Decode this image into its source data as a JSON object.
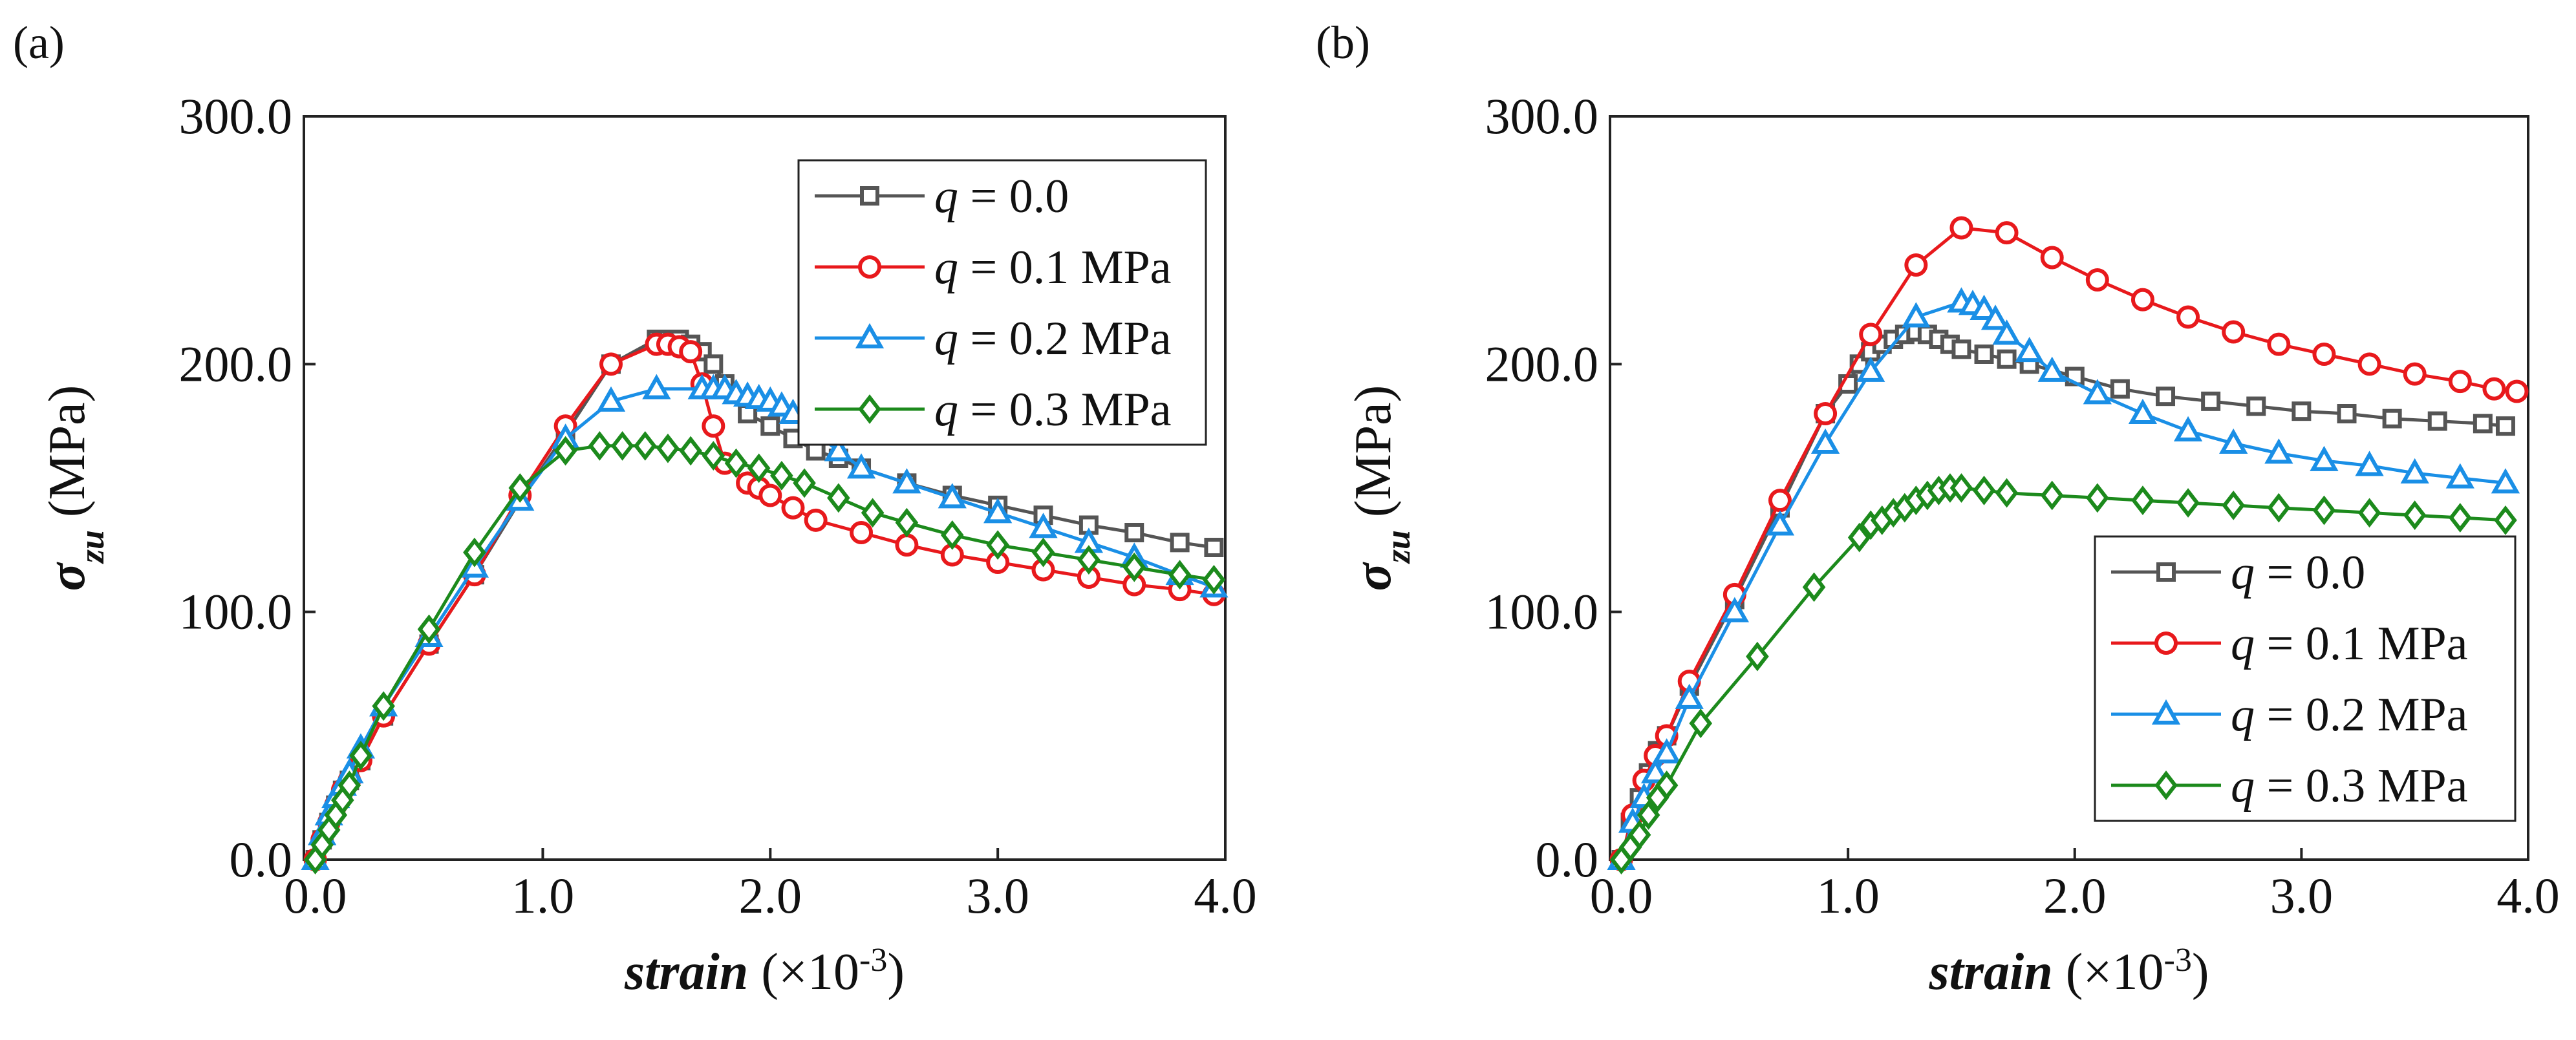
{
  "chart_data": [
    {
      "type": "line",
      "panel_label": "(a)",
      "title": "",
      "xlabel": {
        "var": "strain",
        "unit_prefix": " (×10",
        "unit_sup": "-3",
        "unit_suffix": ")"
      },
      "ylabel": {
        "var": "σ",
        "sub": "zu",
        "unit": " (MPa)"
      },
      "xlim": [
        -0.05,
        4.0
      ],
      "ylim": [
        0,
        300
      ],
      "xticks": [
        "0.0",
        "1.0",
        "2.0",
        "3.0",
        "4.0"
      ],
      "xtick_values": [
        0,
        1,
        2,
        3,
        4
      ],
      "yticks": [
        "0.0",
        "100.0",
        "200.0",
        "300.0"
      ],
      "ytick_values": [
        0,
        100,
        200,
        300
      ],
      "legend_position": "top-right",
      "series": [
        {
          "name_var": "q",
          "name_rest": " = 0.0",
          "color": "#555555",
          "marker": "square",
          "x": [
            0.0,
            0.03,
            0.06,
            0.09,
            0.12,
            0.15,
            0.2,
            0.3,
            0.5,
            0.7,
            0.9,
            1.1,
            1.3,
            1.5,
            1.55,
            1.6,
            1.65,
            1.7,
            1.75,
            1.8,
            1.9,
            2.0,
            2.1,
            2.2,
            2.3,
            2.4,
            2.6,
            2.8,
            3.0,
            3.2,
            3.4,
            3.6,
            3.8,
            3.95
          ],
          "y": [
            0,
            8,
            15,
            22,
            28,
            32,
            40,
            58,
            87,
            115,
            145,
            172,
            200,
            210,
            210,
            210,
            208,
            205,
            200,
            192,
            180,
            175,
            170,
            165,
            162,
            158,
            152,
            147,
            143,
            139,
            135,
            132,
            128,
            126
          ]
        },
        {
          "name_var": "q",
          "name_rest": " = 0.1 MPa",
          "color": "#e8191c",
          "marker": "circle",
          "x": [
            0.0,
            0.03,
            0.06,
            0.09,
            0.12,
            0.15,
            0.2,
            0.3,
            0.5,
            0.7,
            0.9,
            1.1,
            1.3,
            1.5,
            1.55,
            1.6,
            1.65,
            1.7,
            1.75,
            1.8,
            1.9,
            1.95,
            2.0,
            2.1,
            2.2,
            2.4,
            2.6,
            2.8,
            3.0,
            3.2,
            3.4,
            3.6,
            3.8,
            3.95
          ],
          "y": [
            0,
            8,
            15,
            22,
            28,
            32,
            40,
            58,
            87,
            115,
            147,
            175,
            200,
            208,
            208,
            207,
            205,
            192,
            175,
            160,
            152,
            150,
            147,
            142,
            137,
            132,
            127,
            123,
            120,
            117,
            114,
            111,
            109,
            107
          ]
        },
        {
          "name_var": "q",
          "name_rest": " = 0.2 MPa",
          "color": "#1a8fe6",
          "marker": "triangle",
          "x": [
            0.0,
            0.03,
            0.06,
            0.09,
            0.12,
            0.15,
            0.2,
            0.3,
            0.5,
            0.7,
            0.9,
            1.1,
            1.3,
            1.5,
            1.7,
            1.75,
            1.8,
            1.85,
            1.9,
            1.95,
            2.0,
            2.05,
            2.1,
            2.2,
            2.3,
            2.4,
            2.6,
            2.8,
            3.0,
            3.2,
            3.4,
            3.6,
            3.8,
            3.95
          ],
          "y": [
            0,
            10,
            18,
            25,
            30,
            35,
            45,
            62,
            90,
            118,
            145,
            170,
            185,
            190,
            190,
            190,
            190,
            188,
            187,
            186,
            185,
            183,
            180,
            172,
            165,
            158,
            152,
            146,
            140,
            134,
            128,
            122,
            115,
            110
          ]
        },
        {
          "name_var": "q",
          "name_rest": " = 0.3 MPa",
          "color": "#1c8a1c",
          "marker": "diamond",
          "x": [
            0.0,
            0.03,
            0.06,
            0.09,
            0.12,
            0.15,
            0.2,
            0.3,
            0.5,
            0.7,
            0.9,
            1.1,
            1.25,
            1.35,
            1.45,
            1.55,
            1.65,
            1.75,
            1.85,
            1.95,
            2.05,
            2.15,
            2.3,
            2.45,
            2.6,
            2.8,
            3.0,
            3.2,
            3.4,
            3.6,
            3.8,
            3.95
          ],
          "y": [
            0,
            6,
            12,
            18,
            24,
            30,
            42,
            62,
            93,
            124,
            150,
            165,
            167,
            167,
            167,
            166,
            165,
            163,
            160,
            158,
            155,
            152,
            146,
            140,
            136,
            131,
            127,
            124,
            121,
            118,
            115,
            113
          ]
        }
      ]
    },
    {
      "type": "line",
      "panel_label": "(b)",
      "title": "",
      "xlabel": {
        "var": "strain",
        "unit_prefix": " (×10",
        "unit_sup": "-3",
        "unit_suffix": ")"
      },
      "ylabel": {
        "var": "σ",
        "sub": "zu",
        "unit": " (MPa)"
      },
      "xlim": [
        -0.05,
        4.0
      ],
      "ylim": [
        0,
        300
      ],
      "xticks": [
        "0.0",
        "1.0",
        "2.0",
        "3.0",
        "4.0"
      ],
      "xtick_values": [
        0,
        1,
        2,
        3,
        4
      ],
      "yticks": [
        "0.0",
        "100.0",
        "200.0",
        "300.0"
      ],
      "ytick_values": [
        0,
        100,
        200,
        300
      ],
      "legend_position": "bottom-right",
      "series": [
        {
          "name_var": "q",
          "name_rest": " = 0.0",
          "color": "#555555",
          "marker": "square",
          "x": [
            0.0,
            0.04,
            0.08,
            0.12,
            0.16,
            0.2,
            0.3,
            0.5,
            0.7,
            0.9,
            1.0,
            1.05,
            1.1,
            1.15,
            1.2,
            1.25,
            1.3,
            1.35,
            1.4,
            1.45,
            1.5,
            1.6,
            1.7,
            1.8,
            2.0,
            2.2,
            2.4,
            2.6,
            2.8,
            3.0,
            3.2,
            3.4,
            3.6,
            3.8,
            3.9
          ],
          "y": [
            0,
            15,
            25,
            35,
            44,
            50,
            70,
            105,
            142,
            180,
            192,
            200,
            205,
            208,
            210,
            212,
            213,
            212,
            210,
            208,
            206,
            204,
            202,
            200,
            195,
            190,
            187,
            185,
            183,
            181,
            180,
            178,
            177,
            176,
            175
          ]
        },
        {
          "name_var": "q",
          "name_rest": " = 0.1 MPa",
          "color": "#e8191c",
          "marker": "circle",
          "x": [
            0.0,
            0.05,
            0.1,
            0.15,
            0.2,
            0.3,
            0.5,
            0.7,
            0.9,
            1.1,
            1.3,
            1.5,
            1.7,
            1.9,
            2.1,
            2.3,
            2.5,
            2.7,
            2.9,
            3.1,
            3.3,
            3.5,
            3.7,
            3.85,
            3.95
          ],
          "y": [
            0,
            18,
            32,
            42,
            50,
            72,
            107,
            145,
            180,
            212,
            240,
            255,
            253,
            243,
            234,
            226,
            219,
            213,
            208,
            204,
            200,
            196,
            193,
            190,
            189
          ]
        },
        {
          "name_var": "q",
          "name_rest": " = 0.2 MPa",
          "color": "#1a8fe6",
          "marker": "triangle",
          "x": [
            0.0,
            0.05,
            0.1,
            0.15,
            0.2,
            0.3,
            0.5,
            0.7,
            0.9,
            1.1,
            1.3,
            1.5,
            1.55,
            1.6,
            1.65,
            1.7,
            1.8,
            1.9,
            2.1,
            2.3,
            2.5,
            2.7,
            2.9,
            3.1,
            3.3,
            3.5,
            3.7,
            3.9
          ],
          "y": [
            0,
            15,
            25,
            35,
            43,
            65,
            100,
            135,
            168,
            197,
            219,
            225,
            224,
            222,
            218,
            212,
            205,
            197,
            188,
            180,
            173,
            168,
            164,
            161,
            159,
            156,
            154,
            152
          ]
        },
        {
          "name_var": "q",
          "name_rest": " = 0.3 MPa",
          "color": "#1c8a1c",
          "marker": "diamond",
          "x": [
            0.0,
            0.04,
            0.08,
            0.12,
            0.16,
            0.2,
            0.35,
            0.6,
            0.85,
            1.05,
            1.1,
            1.15,
            1.2,
            1.25,
            1.3,
            1.35,
            1.4,
            1.45,
            1.5,
            1.6,
            1.7,
            1.9,
            2.1,
            2.3,
            2.5,
            2.7,
            2.9,
            3.1,
            3.3,
            3.5,
            3.7,
            3.9
          ],
          "y": [
            0,
            5,
            10,
            18,
            25,
            30,
            55,
            82,
            110,
            130,
            135,
            137,
            140,
            142,
            145,
            147,
            149,
            150,
            150,
            149,
            148,
            147,
            146,
            145,
            144,
            143,
            142,
            141,
            140,
            139,
            138,
            137
          ]
        }
      ]
    }
  ]
}
